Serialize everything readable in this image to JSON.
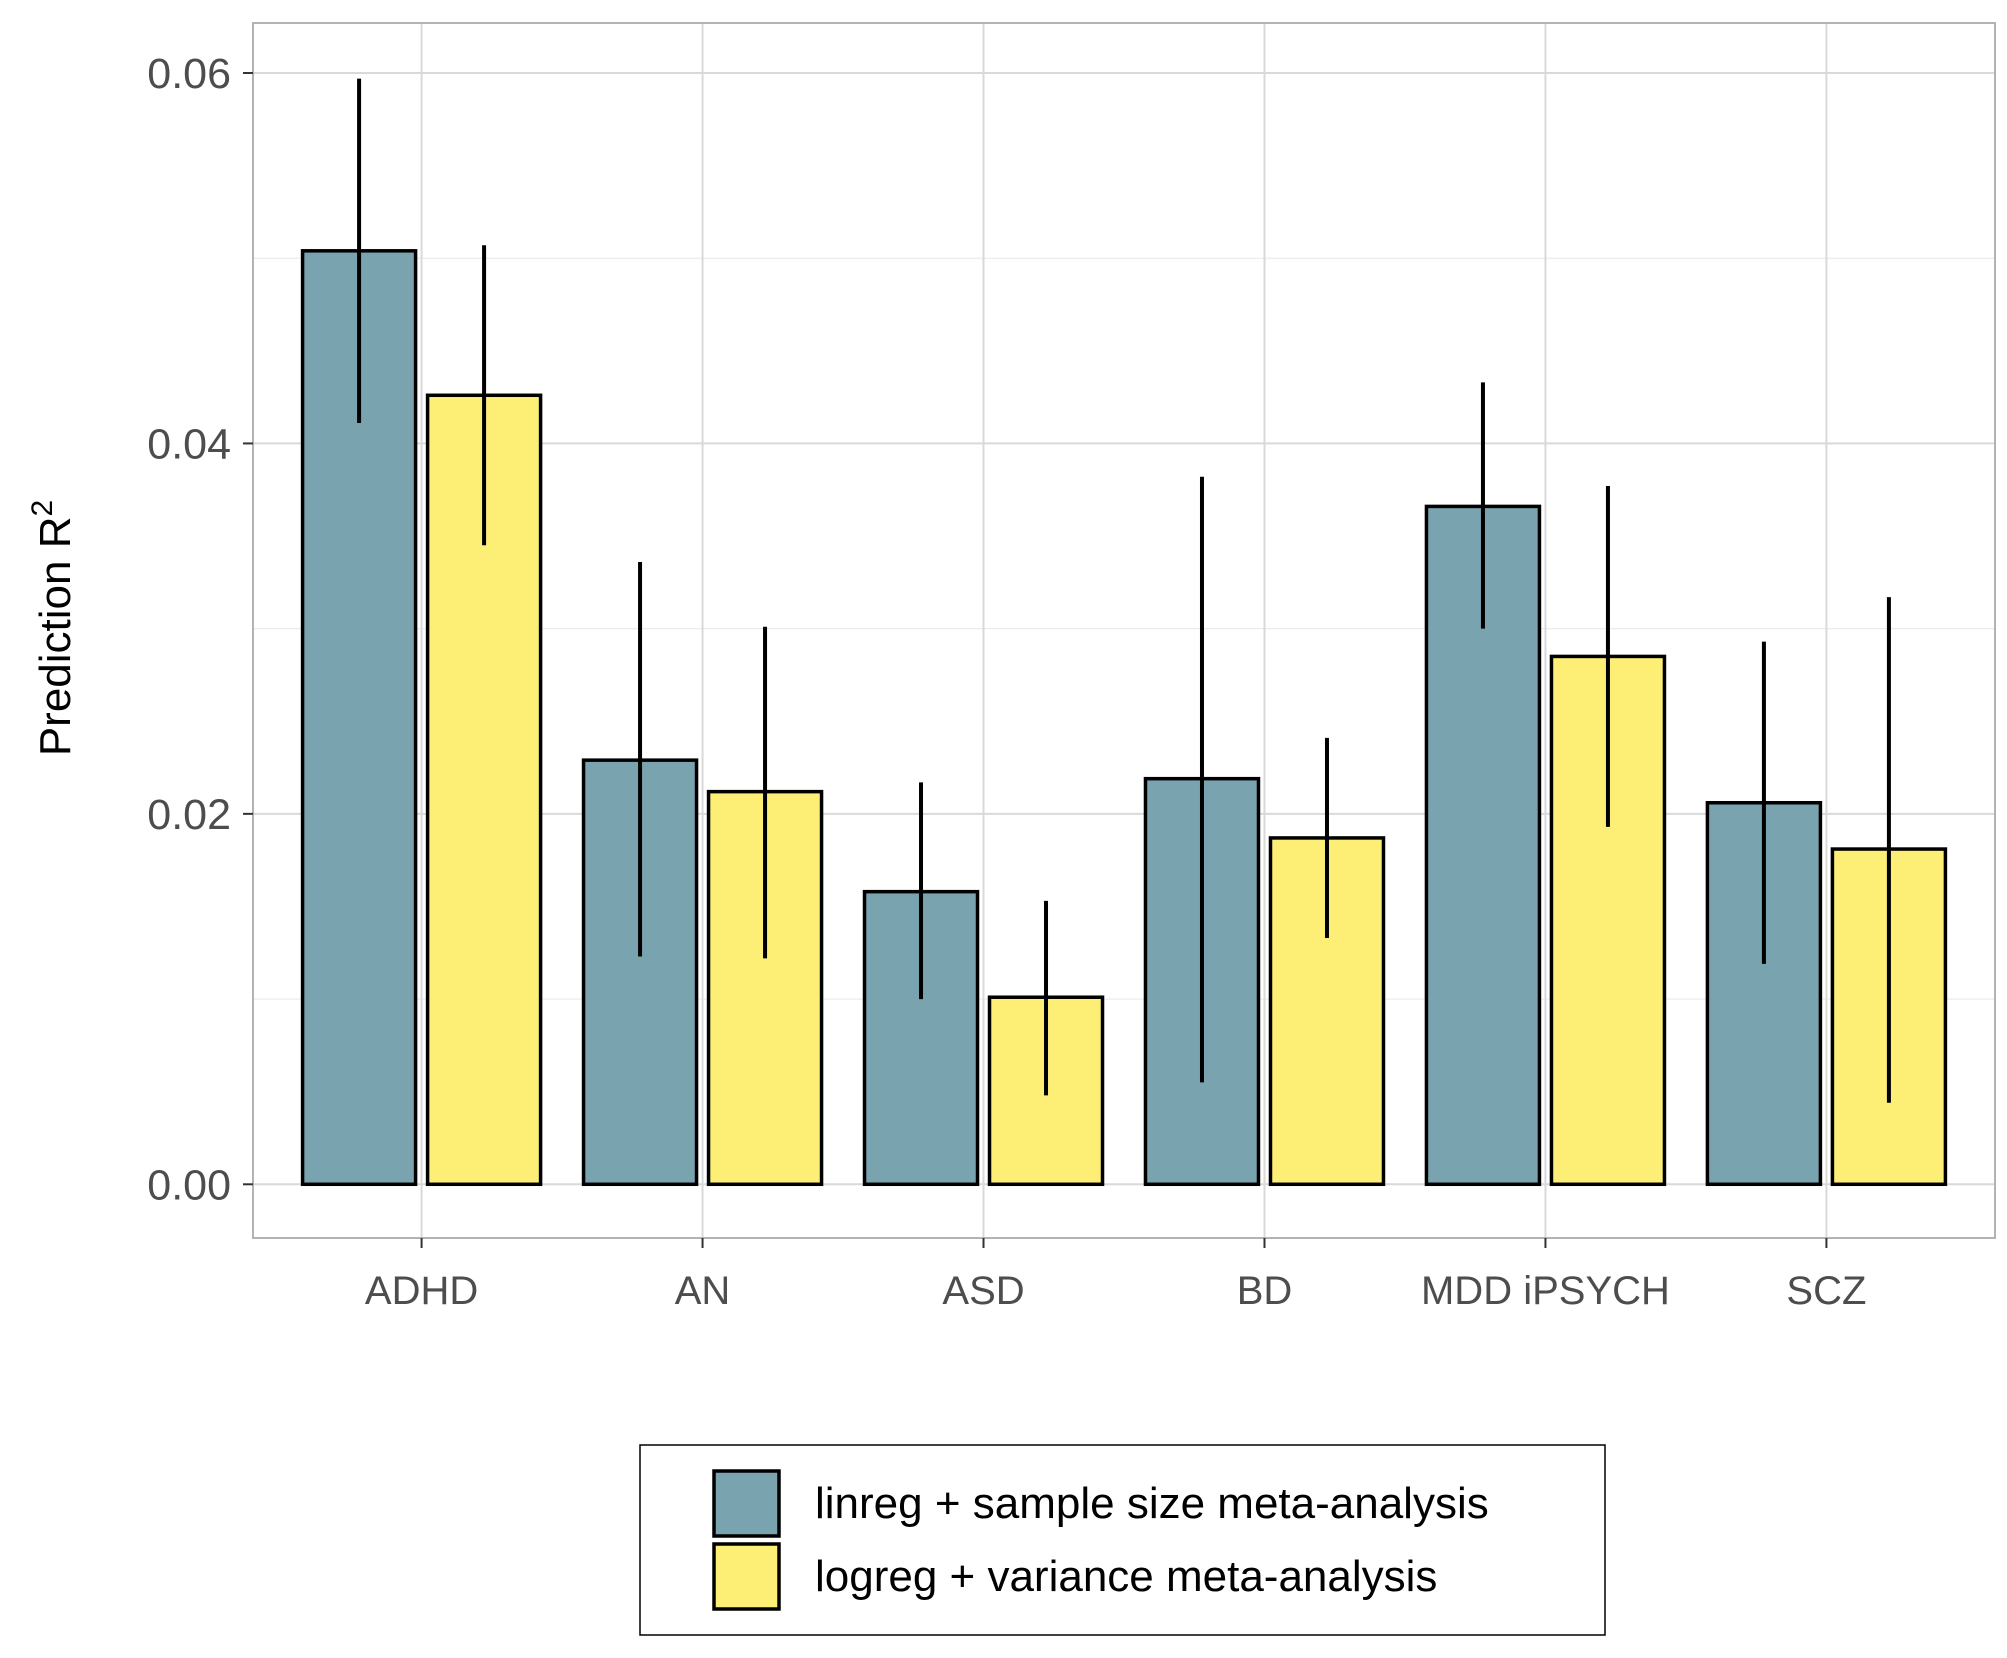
{
  "chart_data": {
    "type": "bar",
    "categories": [
      "ADHD",
      "AN",
      "ASD",
      "BD",
      "MDD iPSYCH",
      "SCZ"
    ],
    "series": [
      {
        "name": "linreg + sample size meta-analysis",
        "color": "#7aa3b0",
        "values": [
          0.0504,
          0.0229,
          0.0158,
          0.0219,
          0.0366,
          0.0206
        ],
        "err_low": [
          0.0411,
          0.0123,
          0.01,
          0.0055,
          0.03,
          0.0119
        ],
        "err_high": [
          0.0597,
          0.0336,
          0.0217,
          0.0382,
          0.0433,
          0.0293
        ]
      },
      {
        "name": "logreg + variance meta-analysis",
        "color": "#fdee76",
        "values": [
          0.0426,
          0.0212,
          0.0101,
          0.0187,
          0.0285,
          0.0181
        ],
        "err_low": [
          0.0345,
          0.0122,
          0.0048,
          0.0133,
          0.0193,
          0.0044
        ],
        "err_high": [
          0.0507,
          0.0301,
          0.0153,
          0.0241,
          0.0377,
          0.0317
        ]
      }
    ],
    "ylabel": "Prediction R",
    "ylabel_sup": "2",
    "xlabel": "",
    "ylim": [
      -0.0029,
      0.0627
    ],
    "yticks": [
      "0.00",
      "0.02",
      "0.04",
      "0.06"
    ],
    "ytick_values": [
      0,
      0.02,
      0.04,
      0.06
    ],
    "grid": true,
    "legend_position": "bottom"
  }
}
